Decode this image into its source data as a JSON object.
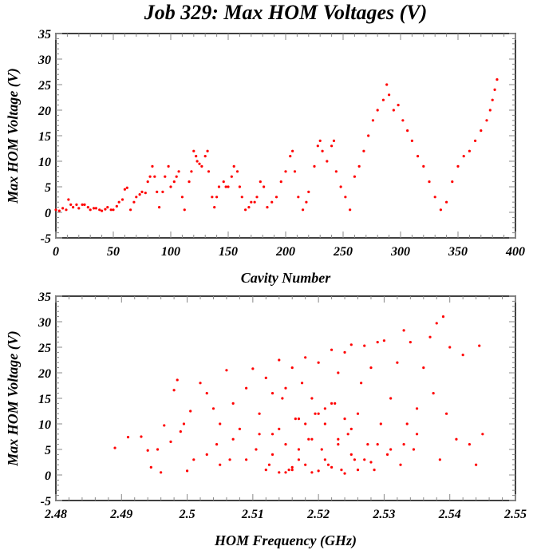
{
  "chart_data": [
    {
      "type": "scatter",
      "title": "Job 329: Max HOM Voltages (V)",
      "xlabel": "Cavity Number",
      "ylabel": "Max HOM Voltage (V)",
      "xlim": [
        0,
        400
      ],
      "ylim": [
        -5,
        35
      ],
      "xticks": [
        "0",
        "50",
        "100",
        "150",
        "200",
        "250",
        "300",
        "350",
        "400"
      ],
      "yticks": [
        "-5",
        "0",
        "5",
        "10",
        "15",
        "20",
        "25",
        "30",
        "35"
      ],
      "color": "#ff0000",
      "x": [
        0,
        3,
        6,
        9,
        11,
        13,
        15,
        18,
        20,
        23,
        25,
        28,
        30,
        33,
        35,
        38,
        40,
        43,
        45,
        48,
        50,
        53,
        55,
        58,
        60,
        62,
        65,
        68,
        70,
        73,
        75,
        78,
        80,
        82,
        84,
        86,
        88,
        90,
        93,
        95,
        98,
        100,
        103,
        105,
        107,
        110,
        112,
        116,
        118,
        120,
        122,
        123,
        125,
        127,
        130,
        132,
        133,
        136,
        138,
        140,
        142,
        146,
        148,
        150,
        153,
        155,
        158,
        160,
        162,
        165,
        168,
        170,
        173,
        175,
        178,
        181,
        184,
        188,
        192,
        196,
        200,
        204,
        206,
        208,
        211,
        215,
        218,
        220,
        225,
        228,
        230,
        232,
        236,
        240,
        242,
        244,
        248,
        252,
        256,
        260,
        264,
        268,
        272,
        276,
        280,
        285,
        288,
        290,
        294,
        298,
        302,
        306,
        310,
        315,
        320,
        325,
        330,
        335,
        340,
        345,
        350,
        355,
        360,
        365,
        370,
        375,
        378,
        380,
        382,
        384
      ],
      "y": [
        0.5,
        0.3,
        0.8,
        0.5,
        2.5,
        1.5,
        1,
        1.5,
        0.8,
        1.5,
        1.5,
        1,
        0.5,
        0.8,
        0.8,
        0.5,
        0.3,
        0.6,
        1,
        0.5,
        0.5,
        1.2,
        2,
        2.5,
        4.5,
        4.8,
        0.5,
        2,
        3,
        3.5,
        4,
        3.8,
        6,
        7,
        9,
        7,
        4,
        1,
        4,
        7,
        9,
        5,
        6,
        7,
        8,
        3,
        0.5,
        6,
        8,
        12,
        11,
        10,
        9.5,
        9,
        11,
        12,
        8,
        3,
        1,
        3,
        5,
        6,
        5,
        5,
        7,
        9,
        8,
        5,
        3,
        0.5,
        1,
        2,
        2,
        3,
        6,
        5,
        1,
        2,
        3,
        6,
        8,
        11,
        12,
        8,
        3,
        0.5,
        2,
        4,
        9,
        13,
        14,
        12,
        10,
        13,
        14,
        8,
        5,
        3,
        0.5,
        7,
        9,
        12,
        15,
        18,
        20,
        22,
        25,
        23,
        20,
        21,
        18,
        16,
        14,
        11,
        9,
        6,
        3,
        0.5,
        2,
        6,
        9,
        11,
        12,
        14,
        16,
        18,
        20,
        22,
        24,
        26
      ]
    },
    {
      "type": "scatter",
      "xlabel": "HOM Frequency (GHz)",
      "ylabel": "Max HOM Voltage (V)",
      "xlim": [
        2.48,
        2.55
      ],
      "ylim": [
        -5,
        35
      ],
      "xticks": [
        "2.48",
        "2.49",
        "2.5",
        "2.51",
        "2.52",
        "2.53",
        "2.54",
        "2.55"
      ],
      "yticks": [
        "-5",
        "0",
        "5",
        "10",
        "15",
        "20",
        "25",
        "30",
        "35"
      ],
      "color": "#ff0000",
      "x": [
        2.489,
        2.491,
        2.493,
        2.494,
        2.4945,
        2.4955,
        2.496,
        2.4965,
        2.4975,
        2.498,
        2.4985,
        2.499,
        2.4995,
        2.5,
        2.5005,
        2.501,
        2.502,
        2.503,
        2.504,
        2.5045,
        2.505,
        2.506,
        2.5065,
        2.507,
        2.508,
        2.509,
        2.51,
        2.5105,
        2.511,
        2.512,
        2.5125,
        2.513,
        2.514,
        2.5145,
        2.515,
        2.5155,
        2.516,
        2.5165,
        2.517,
        2.5175,
        2.518,
        2.5185,
        2.519,
        2.5195,
        2.52,
        2.5205,
        2.521,
        2.5215,
        2.522,
        2.5225,
        2.523,
        2.5235,
        2.524,
        2.5245,
        2.525,
        2.5255,
        2.526,
        2.5265,
        2.527,
        2.5275,
        2.528,
        2.5285,
        2.529,
        2.5295,
        2.53,
        2.5305,
        2.531,
        2.532,
        2.5325,
        2.533,
        2.5335,
        2.534,
        2.5345,
        2.535,
        2.536,
        2.537,
        2.5375,
        2.538,
        2.5385,
        2.539,
        2.5395,
        2.54,
        2.541,
        2.542,
        2.543,
        2.544,
        2.5445,
        2.545,
        2.512,
        2.514,
        2.516,
        2.518,
        2.52,
        2.522,
        2.524,
        2.526,
        2.528,
        2.515,
        2.517,
        2.519,
        2.521,
        2.523,
        2.525,
        2.511,
        2.513,
        2.527,
        2.529,
        2.531,
        2.509,
        2.507,
        2.505,
        2.503,
        2.533,
        2.535,
        2.516,
        2.518,
        2.52,
        2.522,
        2.514,
        2.524,
        2.519,
        2.521,
        2.517,
        2.515,
        2.523,
        2.525,
        2.513
      ],
      "y": [
        5.3,
        7.4,
        7.5,
        4.8,
        1.5,
        5,
        0.5,
        9.7,
        6.5,
        16.6,
        18.6,
        8.5,
        10,
        0.8,
        12.5,
        3,
        18,
        16,
        13,
        6,
        10,
        20.5,
        3,
        14,
        9,
        17,
        20.8,
        5,
        12,
        19,
        2,
        8,
        22.5,
        15,
        6,
        1,
        21,
        11,
        3,
        18,
        23,
        7,
        0.5,
        12,
        22,
        5,
        10,
        2,
        24.5,
        14,
        20,
        1,
        24,
        8,
        25.5,
        3,
        12,
        18,
        25.3,
        6,
        21,
        1,
        26,
        10,
        26.3,
        4,
        15,
        22,
        2,
        28.3,
        10,
        26,
        5,
        13,
        21,
        27,
        16,
        29.7,
        3,
        31,
        12,
        25,
        7,
        23.5,
        6,
        2,
        25.3,
        8,
        1,
        0.5,
        1,
        2,
        0.8,
        1.5,
        0.3,
        1,
        2.5,
        0.5,
        5,
        7,
        3,
        6,
        4,
        8,
        4,
        3,
        6,
        5,
        3,
        7,
        2,
        4,
        6,
        8,
        1.5,
        10,
        12,
        14,
        9,
        11,
        15,
        13,
        11,
        17,
        7,
        9,
        16
      ]
    }
  ]
}
